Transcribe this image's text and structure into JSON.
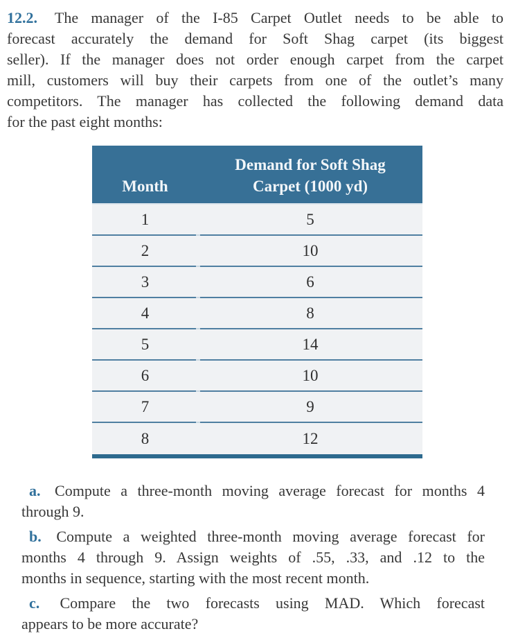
{
  "colors": {
    "accent": "#31719c",
    "header-bg": "#377096",
    "header-text": "#f2f6f9",
    "row-bg": "#f0f2f4",
    "row-line": "#4f7fa1",
    "table-bottom": "#2d6a8e",
    "body-text": "#373737"
  },
  "problem": {
    "number": "12.2.",
    "statement_lines": [
      "The manager of the I-85 Carpet Outlet needs to be able to",
      "forecast accurately the demand for Soft Shag carpet (its biggest",
      "seller). If the manager does not order enough carpet from the carpet",
      "mill, customers will buy their carpets from one of the outlet’s many",
      "competitors. The manager has collected the following demand data",
      "for the past eight months:"
    ]
  },
  "table": {
    "header": {
      "month": "Month",
      "demand_line1": "Demand for Soft Shag",
      "demand_line2": "Carpet (1000 yd)"
    },
    "rows": [
      {
        "month": "1",
        "demand": "5"
      },
      {
        "month": "2",
        "demand": "10"
      },
      {
        "month": "3",
        "demand": "6"
      },
      {
        "month": "4",
        "demand": "8"
      },
      {
        "month": "5",
        "demand": "14"
      },
      {
        "month": "6",
        "demand": "10"
      },
      {
        "month": "7",
        "demand": "9"
      },
      {
        "month": "8",
        "demand": "12"
      }
    ]
  },
  "questions": [
    {
      "label": "a.",
      "lines": [
        "Compute a three-month moving average forecast for months 4",
        "through 9."
      ]
    },
    {
      "label": "b.",
      "lines": [
        "Compute a weighted three-month moving average forecast for",
        "months 4 through 9. Assign weights of .55, .33, and .12 to the",
        "months in sequence, starting with the most recent month."
      ]
    },
    {
      "label": "c.",
      "lines": [
        "Compare the two forecasts using MAD. Which forecast",
        "appears to be more accurate?"
      ]
    }
  ]
}
